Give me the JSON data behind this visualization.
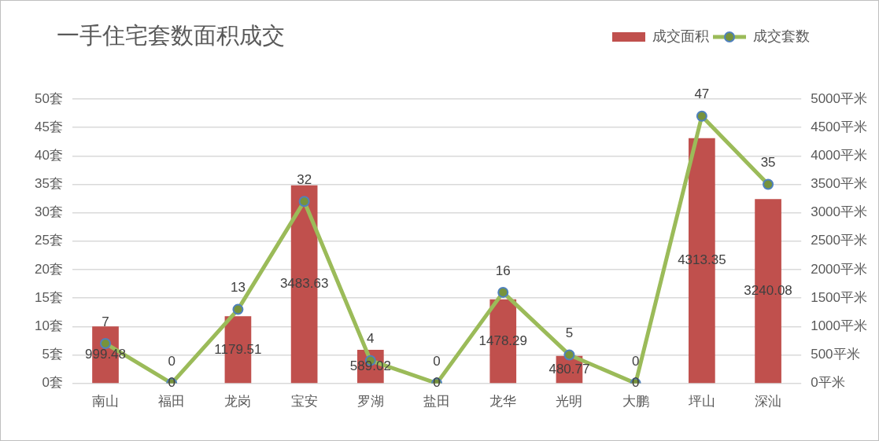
{
  "chart_data": {
    "type": "bar",
    "title": "一手住宅套数面积成交",
    "categories": [
      "南山",
      "福田",
      "龙岗",
      "宝安",
      "罗湖",
      "盐田",
      "龙华",
      "光明",
      "大鹏",
      "坪山",
      "深汕"
    ],
    "series": [
      {
        "name": "成交面积",
        "axis": "y2",
        "color": "#c0504d",
        "values": [
          999.48,
          0,
          1179.51,
          3483.63,
          589.02,
          0,
          1478.29,
          480.77,
          0,
          4313.35,
          3240.08
        ]
      },
      {
        "name": "成交套数",
        "type": "line",
        "color": "#9bbb59",
        "values": [
          7,
          0,
          13,
          32,
          4,
          0,
          16,
          5,
          0,
          47,
          35
        ]
      }
    ],
    "ylim": [
      0,
      50
    ],
    "yticks": [
      {
        "value": 0,
        "label": "0套"
      },
      {
        "value": 5,
        "label": "5套"
      },
      {
        "value": 10,
        "label": "10套"
      },
      {
        "value": 15,
        "label": "15套"
      },
      {
        "value": 20,
        "label": "20套"
      },
      {
        "value": 25,
        "label": "25套"
      },
      {
        "value": 30,
        "label": "30套"
      },
      {
        "value": 35,
        "label": "35套"
      },
      {
        "value": 40,
        "label": "40套"
      },
      {
        "value": 45,
        "label": "45套"
      },
      {
        "value": 50,
        "label": "50套"
      }
    ],
    "y2lim": [
      0,
      5000
    ],
    "y2ticks": [
      {
        "value": 0,
        "label": "0平米"
      },
      {
        "value": 500,
        "label": "500平米"
      },
      {
        "value": 1000,
        "label": "1000平米"
      },
      {
        "value": 1500,
        "label": "1500平米"
      },
      {
        "value": 2000,
        "label": "2000平米"
      },
      {
        "value": 2500,
        "label": "2500平米"
      },
      {
        "value": 3000,
        "label": "3000平米"
      },
      {
        "value": 3500,
        "label": "3500平米"
      },
      {
        "value": 4000,
        "label": "4000平米"
      },
      {
        "value": 4500,
        "label": "4500平米"
      },
      {
        "value": 5000,
        "label": "5000平米"
      }
    ],
    "grid": "y",
    "legend": "top right",
    "marker": "circle",
    "line_style": "solid",
    "data_labels": true
  }
}
